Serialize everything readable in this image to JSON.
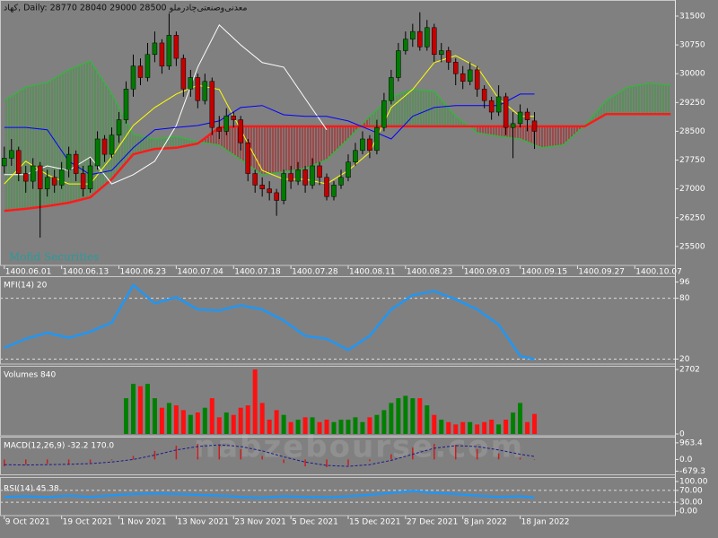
{
  "watermark": "nabzebourse.com",
  "chart_data": [
    {
      "type": "candlestick",
      "title": "کهاد, Daily:  28770 28040 29000 28500  معدنی‌وصنعتی‌چادرملو",
      "watermark": "Mofid Securities",
      "xlim": [
        -0.6,
        93.6
      ],
      "xticks": [
        {
          "value": 0,
          "label": "1400.06.01"
        },
        {
          "value": 8,
          "label": "1400.06.13"
        },
        {
          "value": 16,
          "label": "1400.06.23"
        },
        {
          "value": 24,
          "label": "1400.07.04"
        },
        {
          "value": 32,
          "label": "1400.07.18"
        },
        {
          "value": 40,
          "label": "1400.07.28"
        },
        {
          "value": 48,
          "label": "1400.08.11"
        },
        {
          "value": 56,
          "label": "1400.08.23"
        },
        {
          "value": 64,
          "label": "1400.09.03"
        },
        {
          "value": 72,
          "label": "1400.09.15"
        },
        {
          "value": 80,
          "label": "1400.09.27"
        },
        {
          "value": 88,
          "label": "1400.10.07"
        }
      ],
      "ylim": [
        25030,
        31920
      ],
      "yticks": [
        31500,
        30750,
        30000,
        29250,
        28500,
        27750,
        27000,
        26250,
        25500
      ],
      "candles": {
        "up_color": "#007a00",
        "down_color": "#c40000",
        "wick_color": "#000000",
        "open": [
          27600,
          27800,
          28000,
          27400,
          27200,
          27600,
          27000,
          27300,
          27100,
          27500,
          27900,
          27400,
          27000,
          27600,
          28300,
          27900,
          28400,
          28800,
          29600,
          30200,
          29900,
          30500,
          30800,
          30200,
          31000,
          30400,
          29600,
          29900,
          29300,
          29800,
          28600,
          28500,
          28900,
          28800,
          28200,
          27400,
          27100,
          27000,
          26900,
          26700,
          27400,
          27200,
          27500,
          27100,
          27600,
          27300,
          26800,
          27100,
          27300,
          27700,
          28000,
          28300,
          28000,
          28600,
          29300,
          29900,
          30600,
          30900,
          31100,
          30700,
          31200,
          30500,
          30600,
          30300,
          30000,
          29800,
          30100,
          29600,
          29300,
          29000,
          29400,
          28600,
          28700,
          29000,
          28770
        ],
        "high": [
          28100,
          28300,
          28100,
          27600,
          27800,
          27700,
          27500,
          27500,
          27700,
          28100,
          28000,
          27600,
          27800,
          28500,
          28400,
          28600,
          29000,
          29800,
          30500,
          30400,
          30800,
          31100,
          30900,
          31570,
          31100,
          30500,
          30100,
          30000,
          30000,
          29900,
          28900,
          29100,
          29000,
          28900,
          28300,
          27500,
          27300,
          27200,
          27000,
          27500,
          27600,
          27700,
          27600,
          27800,
          27700,
          27400,
          27200,
          27500,
          27900,
          28200,
          28500,
          28400,
          28800,
          29500,
          30100,
          30800,
          31100,
          31300,
          31600,
          31400,
          31300,
          30800,
          30700,
          30400,
          30200,
          30300,
          30200,
          29700,
          29400,
          29700,
          29500,
          29000,
          29200,
          29100,
          29000
        ],
        "low": [
          27400,
          27600,
          27200,
          26900,
          27000,
          25730,
          26800,
          26900,
          27000,
          27300,
          27200,
          26800,
          26900,
          27500,
          27700,
          27800,
          28200,
          28700,
          29400,
          29700,
          29800,
          30300,
          30000,
          30100,
          30200,
          29400,
          29400,
          29100,
          29200,
          28400,
          28300,
          28400,
          28600,
          28000,
          27200,
          26900,
          26800,
          26700,
          26300,
          26600,
          27000,
          27100,
          26900,
          27000,
          27100,
          26700,
          26700,
          27000,
          27200,
          27600,
          27900,
          27800,
          27900,
          28500,
          29200,
          29800,
          30500,
          30700,
          30600,
          30600,
          30300,
          30300,
          30100,
          29700,
          29600,
          29700,
          29400,
          29100,
          28800,
          28900,
          28400,
          27800,
          28600,
          28500,
          28040
        ],
        "close": [
          27800,
          28000,
          27400,
          27200,
          27600,
          27000,
          27300,
          27100,
          27500,
          27900,
          27400,
          27000,
          27600,
          28300,
          27900,
          28400,
          28800,
          29600,
          30200,
          29900,
          30500,
          30800,
          30200,
          31000,
          30400,
          29600,
          29900,
          29300,
          29800,
          28600,
          28500,
          28900,
          28800,
          28200,
          27400,
          27100,
          27000,
          26900,
          26700,
          27400,
          27200,
          27500,
          27100,
          27600,
          27300,
          26800,
          27100,
          27300,
          27700,
          28000,
          28300,
          28000,
          28600,
          29300,
          29900,
          30600,
          30900,
          31100,
          30700,
          31200,
          30500,
          30600,
          30300,
          30000,
          29800,
          30100,
          29600,
          29300,
          29000,
          29400,
          28600,
          28700,
          29000,
          28800,
          28500
        ]
      },
      "cloud": {
        "x": [
          0,
          3,
          6,
          9,
          12,
          15,
          18,
          21,
          24,
          27,
          30,
          33,
          36,
          39,
          42,
          45,
          48,
          51,
          54,
          57,
          60,
          63,
          66,
          69,
          72,
          75,
          78,
          81,
          84,
          87,
          90,
          93
        ],
        "span_a": [
          29300,
          29650,
          29770,
          30100,
          30330,
          29470,
          28420,
          28300,
          28370,
          28230,
          28140,
          27760,
          27370,
          27440,
          27530,
          27760,
          28300,
          28890,
          29400,
          29590,
          29540,
          28890,
          28460,
          28370,
          28300,
          28070,
          28140,
          28650,
          29300,
          29650,
          29750,
          29700
        ],
        "span_b": [
          26430,
          26480,
          26550,
          26640,
          26780,
          27250,
          27900,
          28040,
          28070,
          28180,
          28600,
          28630,
          28630,
          28630,
          28630,
          28630,
          28630,
          28630,
          28630,
          28630,
          28630,
          28630,
          28630,
          28630,
          28630,
          28630,
          28630,
          28630,
          28950,
          28950,
          28950,
          28950
        ],
        "span_a_color": "#3cb043",
        "span_b_color": "#ff1a1a",
        "up_color": "#3a9a3a",
        "down_color": "#b81414"
      },
      "series": [
        {
          "color": "#ffffff",
          "x": [
            0,
            3,
            6,
            9,
            12,
            15,
            18,
            21,
            24,
            27,
            30,
            33,
            36,
            39,
            42,
            45
          ],
          "values": [
            27370,
            27370,
            27600,
            27480,
            27830,
            27130,
            27370,
            27720,
            28650,
            30170,
            31270,
            30750,
            30290,
            30170,
            29350,
            28540
          ]
        },
        {
          "color": "#ffff00",
          "x": [
            0,
            3,
            6,
            9,
            12,
            15,
            18,
            21,
            24,
            27,
            30,
            33,
            36,
            39,
            42,
            45,
            48,
            51,
            54,
            57,
            60,
            63,
            66,
            69,
            72,
            74
          ],
          "values": [
            27130,
            27720,
            27370,
            27130,
            27130,
            27830,
            28650,
            29120,
            29470,
            29700,
            29590,
            28540,
            27480,
            27250,
            27250,
            27130,
            27480,
            27950,
            29120,
            29590,
            30290,
            30470,
            30170,
            29350,
            28890,
            28890
          ]
        },
        {
          "color": "#0000ff",
          "x": [
            0,
            3,
            6,
            9,
            12,
            15,
            18,
            21,
            24,
            27,
            30,
            33,
            36,
            39,
            42,
            45,
            48,
            51,
            54,
            57,
            60,
            63,
            66,
            69,
            72,
            74
          ],
          "values": [
            28600,
            28600,
            28540,
            27720,
            27370,
            27480,
            28070,
            28540,
            28600,
            28650,
            28770,
            29120,
            29170,
            28930,
            28890,
            28890,
            28770,
            28540,
            28300,
            28890,
            29120,
            29170,
            29170,
            29170,
            29470,
            29470
          ]
        }
      ]
    },
    {
      "type": "line",
      "title": "MFI(14) 20",
      "ylim": [
        16,
        100
      ],
      "yticks": [
        96,
        80,
        20
      ],
      "levels": [
        80,
        20
      ],
      "series": [
        {
          "color": "#2196f3",
          "x": [
            0,
            3,
            6,
            9,
            12,
            15,
            18,
            21,
            24,
            27,
            30,
            33,
            36,
            39,
            42,
            45,
            48,
            51,
            54,
            57,
            60,
            63,
            66,
            69,
            72,
            74
          ],
          "values": [
            31,
            40,
            46,
            41,
            47,
            56,
            93,
            75,
            81,
            69,
            68,
            73,
            69,
            58,
            43,
            40,
            29,
            43,
            69,
            83,
            87,
            79,
            69,
            54,
            23,
            20
          ]
        }
      ]
    },
    {
      "type": "bar",
      "title": "Volumes 840",
      "ylim": [
        0,
        2780
      ],
      "yticks": [
        2702,
        0
      ],
      "up_color": "#008000",
      "down_color": "#ff1010",
      "values": [
        null,
        null,
        null,
        null,
        null,
        null,
        null,
        null,
        null,
        null,
        null,
        null,
        null,
        null,
        null,
        null,
        null,
        1500,
        2100,
        2000,
        2100,
        1500,
        1100,
        1300,
        1200,
        1000,
        800,
        900,
        1100,
        1500,
        700,
        900,
        800,
        1100,
        1200,
        2702,
        1300,
        600,
        1000,
        800,
        500,
        600,
        700,
        700,
        500,
        600,
        500,
        600,
        600,
        700,
        500,
        700,
        800,
        1000,
        1300,
        1500,
        1600,
        1500,
        1500,
        1200,
        800,
        600,
        500,
        400,
        500,
        500,
        400,
        500,
        600,
        400,
        600,
        900,
        1300,
        500,
        840
      ]
    },
    {
      "type": "macd",
      "title": "MACD(12,26,9) -32.2 170.0",
      "ylim": [
        -811,
        1217
      ],
      "yticks": [
        963.4,
        {
          "value": 0,
          "label": "0.0"
        },
        -679.3
      ],
      "color": "#c81e1e",
      "signal_color": "#1a1a8c",
      "x": [
        0,
        3,
        6,
        9,
        12,
        15,
        18,
        21,
        24,
        27,
        30,
        33,
        36,
        39,
        42,
        45,
        48,
        51,
        54,
        57,
        60,
        63,
        66,
        69,
        72,
        74
      ],
      "values": [
        -400,
        -300,
        -250,
        -300,
        -200,
        -50,
        200,
        500,
        800,
        900,
        850,
        600,
        200,
        -200,
        -400,
        -450,
        -350,
        -100,
        300,
        700,
        900,
        850,
        600,
        350,
        100,
        -32.2
      ],
      "signal": [
        -300,
        -320,
        -300,
        -280,
        -240,
        -150,
        0,
        250,
        550,
        750,
        850,
        750,
        500,
        150,
        -150,
        -350,
        -400,
        -300,
        -50,
        300,
        650,
        800,
        750,
        550,
        300,
        170
      ]
    },
    {
      "type": "line",
      "title": "RSI(14) 45.38",
      "ylim": [
        0,
        100
      ],
      "yticks": [
        {
          "value": 100,
          "label": "100.00"
        },
        {
          "value": 70,
          "label": "70.00"
        },
        {
          "value": 30,
          "label": "30.00"
        },
        {
          "value": 0,
          "label": "0.00"
        }
      ],
      "levels": [
        70,
        30
      ],
      "series": [
        {
          "color": "#2196f3",
          "x": [
            0,
            3,
            6,
            9,
            12,
            15,
            18,
            21,
            24,
            27,
            30,
            33,
            36,
            39,
            42,
            45,
            48,
            51,
            54,
            57,
            60,
            63,
            66,
            69,
            72,
            74
          ],
          "values": [
            48,
            50,
            47,
            52,
            48,
            53,
            58,
            60,
            58,
            55,
            52,
            48,
            45,
            50,
            48,
            46,
            50,
            55,
            62,
            68,
            62,
            58,
            52,
            48,
            50,
            45.38
          ]
        }
      ],
      "xticks": [
        {
          "value": 0,
          "label": "9 Oct 2021"
        },
        {
          "value": 8,
          "label": "19 Oct 2021"
        },
        {
          "value": 16,
          "label": "1 Nov 2021"
        },
        {
          "value": 24,
          "label": "13 Nov 2021"
        },
        {
          "value": 32,
          "label": "23 Nov 2021"
        },
        {
          "value": 40,
          "label": "5 Dec 2021"
        },
        {
          "value": 48,
          "label": "15 Dec 2021"
        },
        {
          "value": 56,
          "label": "27 Dec 2021"
        },
        {
          "value": 64,
          "label": "8 Jan 2022"
        },
        {
          "value": 72,
          "label": "18 Jan 2022"
        }
      ]
    }
  ]
}
